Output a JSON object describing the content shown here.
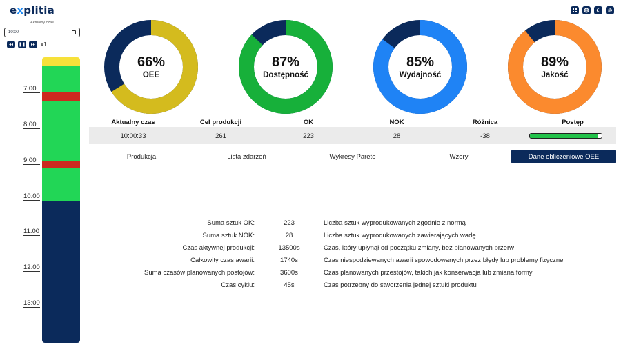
{
  "app": {
    "logo_prefix": "e",
    "logo_x": "x",
    "logo_rest": "plitia"
  },
  "header_icons": [
    "grid-icon",
    "globe-icon",
    "moon-icon",
    "gear-icon"
  ],
  "time_panel": {
    "label": "Aktualny czas",
    "value": "10:00",
    "speed": "x1",
    "controls": [
      "rewind-icon",
      "pause-icon",
      "fast-forward-icon"
    ]
  },
  "timeline": {
    "hours": [
      "7:00",
      "8:00",
      "9:00",
      "10:00",
      "11:00",
      "12:00",
      "13:00"
    ],
    "colors": {
      "running": "#22d656",
      "failure": "#cc2a1f",
      "setup": "#f7e13a",
      "future": "#0b2a5b"
    }
  },
  "kpis": [
    {
      "label": "OEE",
      "value": "66%",
      "fraction": 0.66,
      "color": "#d4bb1e",
      "rest_color": "#0b2a5b"
    },
    {
      "label": "Dostępność",
      "value": "87%",
      "fraction": 0.87,
      "color": "#17b03a",
      "rest_color": "#0b2a5b"
    },
    {
      "label": "Wydajność",
      "value": "85%",
      "fraction": 0.85,
      "color": "#1f83f5",
      "rest_color": "#0b2a5b"
    },
    {
      "label": "Jakość",
      "value": "89%",
      "fraction": 0.89,
      "color": "#fb8a2e",
      "rest_color": "#0b2a5b"
    }
  ],
  "stats": {
    "headers": [
      "Aktualny czas",
      "Cel produkcji",
      "OK",
      "NOK",
      "Różnica",
      "Postęp"
    ],
    "values": [
      "10:00:33",
      "261",
      "223",
      "28",
      "-38"
    ],
    "progress": 0.94,
    "progress_color": "#22c24a"
  },
  "tabs": [
    {
      "label": "Produkcja",
      "active": false
    },
    {
      "label": "Lista zdarzeń",
      "active": false
    },
    {
      "label": "Wykresy Pareto",
      "active": false
    },
    {
      "label": "Wzory",
      "active": false
    },
    {
      "label": "Dane obliczeniowe OEE",
      "active": true
    }
  ],
  "calc": [
    {
      "name": "Suma sztuk OK:",
      "value": "223",
      "desc": "Liczba sztuk wyprodukowanych zgodnie z normą"
    },
    {
      "name": "Suma sztuk NOK:",
      "value": "28",
      "desc": "Liczba sztuk wyprodukowanych zawierających wadę"
    },
    {
      "name": "Czas aktywnej produkcji:",
      "value": "13500s",
      "desc": "Czas, który upłynął od początku zmiany, bez planowanych przerw"
    },
    {
      "name": "Całkowity czas awarii:",
      "value": "1740s",
      "desc": "Czas niespodziewanych awarii spowodowanych przez błędy lub problemy fizyczne"
    },
    {
      "name": "Suma czasów planowanych postojów:",
      "value": "3600s",
      "desc": "Czas planowanych przestojów, takich jak konserwacja lub zmiana formy"
    },
    {
      "name": "Czas cyklu:",
      "value": "45s",
      "desc": "Czas potrzebny do stworzenia jednej sztuki produktu"
    }
  ]
}
